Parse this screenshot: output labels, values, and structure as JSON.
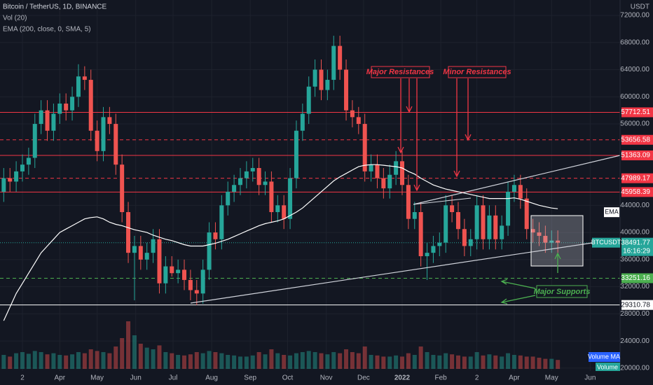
{
  "chart_data": {
    "type": "candlestick",
    "title": "Bitcoin / TetherUS, 1D, BINANCE",
    "subtitle": "Vol (20)",
    "indicator": "EMA (200, close, 0, SMA, 5)",
    "currency": "USDT",
    "x": [
      45,
      50,
      55,
      60,
      65,
      70,
      75,
      80,
      85,
      90,
      95,
      100,
      105,
      110,
      115,
      120,
      125,
      130,
      135,
      140,
      145,
      150,
      155,
      160,
      165,
      170,
      175,
      180,
      185,
      190,
      195,
      200,
      205,
      210,
      215,
      220,
      225,
      230,
      235,
      240,
      245,
      250,
      255,
      260,
      265,
      270,
      275,
      280,
      285,
      290,
      295,
      300,
      305,
      310,
      315,
      320,
      325,
      330,
      335,
      340,
      345,
      350,
      355,
      360,
      365,
      370,
      375,
      380,
      385,
      390,
      395,
      400,
      405,
      410,
      415,
      420,
      425,
      430,
      435,
      440,
      445,
      450,
      455,
      460,
      465,
      470,
      475,
      480,
      485,
      490
    ],
    "open": [
      46000,
      48000,
      47500,
      49000,
      50000,
      51000,
      56000,
      58000,
      55000,
      57500,
      59000,
      58000,
      60000,
      63000,
      62500,
      55000,
      52000,
      57000,
      56000,
      50000,
      43000,
      37000,
      38000,
      36000,
      37000,
      39000,
      32500,
      35000,
      34000,
      34500,
      33000,
      31500,
      31000,
      34500,
      40000,
      39000,
      44000,
      46000,
      47000,
      48000,
      49000,
      49500,
      47000,
      47500,
      43000,
      44000,
      42000,
      48000,
      55000,
      57500,
      61500,
      64000,
      61000,
      62500,
      67500,
      64000,
      58000,
      57000,
      56000,
      49000,
      50000,
      48000,
      46500,
      48500,
      50500,
      47000,
      42000,
      43000,
      36500,
      37000,
      38000,
      38500,
      44000,
      43000,
      40500,
      38000,
      39000,
      44000,
      39000,
      42500,
      39000,
      41000,
      46000,
      47000,
      45000,
      40500,
      40000,
      39500,
      38500,
      38800
    ],
    "high": [
      49500,
      49500,
      50500,
      51500,
      52500,
      57500,
      59500,
      59500,
      59000,
      60500,
      60500,
      61500,
      64800,
      64500,
      64000,
      56500,
      58500,
      58500,
      57500,
      51500,
      44500,
      39500,
      39500,
      38500,
      40500,
      40500,
      36500,
      36500,
      36000,
      36000,
      34500,
      33000,
      36000,
      41500,
      41500,
      45500,
      47500,
      48500,
      49500,
      50500,
      51000,
      51000,
      49000,
      49000,
      45500,
      45500,
      49500,
      56500,
      59000,
      63000,
      65500,
      65500,
      64000,
      69000,
      69000,
      65500,
      59500,
      58500,
      57500,
      51500,
      51500,
      49500,
      50000,
      52000,
      52000,
      48500,
      44500,
      44500,
      38500,
      39500,
      40000,
      45500,
      45500,
      44500,
      42000,
      40500,
      45500,
      45500,
      44000,
      44000,
      42500,
      47500,
      48500,
      48500,
      46500,
      42000,
      41500,
      41000,
      40300,
      40300
    ],
    "low": [
      44500,
      46000,
      46000,
      47500,
      48500,
      49500,
      54500,
      53500,
      53500,
      56000,
      56500,
      56500,
      58500,
      61000,
      53500,
      50500,
      50500,
      54500,
      48500,
      41500,
      35500,
      30000,
      34500,
      34500,
      35500,
      31000,
      31000,
      33500,
      32500,
      31500,
      30000,
      29300,
      29500,
      33000,
      37500,
      37500,
      42500,
      44500,
      45500,
      46500,
      47500,
      45500,
      45500,
      41500,
      41500,
      40500,
      40500,
      46500,
      53500,
      56000,
      60000,
      59500,
      59500,
      61000,
      62500,
      56500,
      55500,
      54500,
      47500,
      47500,
      46500,
      45000,
      45000,
      47000,
      45500,
      40500,
      40500,
      35000,
      33000,
      35500,
      36500,
      37000,
      41500,
      39000,
      36500,
      36500,
      37500,
      37500,
      37500,
      37500,
      37500,
      39500,
      44500,
      43500,
      39000,
      38500,
      38000,
      37000,
      37000,
      37000
    ],
    "close": [
      48000,
      47500,
      49000,
      50000,
      51000,
      56000,
      58000,
      55000,
      57500,
      59000,
      58000,
      60000,
      63000,
      62500,
      55000,
      52000,
      57000,
      56000,
      50000,
      43000,
      37000,
      38000,
      36000,
      37000,
      39000,
      32500,
      35000,
      34000,
      34500,
      33000,
      31500,
      31000,
      34500,
      40000,
      39000,
      44000,
      46000,
      47000,
      48000,
      49000,
      49500,
      47000,
      47500,
      43000,
      44000,
      42000,
      48000,
      55000,
      57500,
      61500,
      64000,
      61000,
      62500,
      67500,
      64000,
      58000,
      57000,
      56000,
      49000,
      50000,
      48000,
      46500,
      48500,
      50500,
      47000,
      42000,
      43000,
      36500,
      37000,
      38000,
      38500,
      44000,
      43000,
      40500,
      38000,
      39000,
      44000,
      39000,
      42500,
      39000,
      41000,
      46000,
      47000,
      45000,
      40500,
      40000,
      39500,
      38500,
      38800,
      38491.77
    ],
    "volume": [
      25,
      22,
      28,
      30,
      27,
      32,
      30,
      26,
      28,
      25,
      24,
      26,
      30,
      28,
      35,
      32,
      30,
      28,
      40,
      55,
      85,
      60,
      45,
      38,
      35,
      42,
      30,
      28,
      25,
      24,
      26,
      30,
      28,
      32,
      30,
      28,
      25,
      24,
      22,
      22,
      24,
      30,
      26,
      35,
      28,
      25,
      24,
      28,
      30,
      32,
      30,
      28,
      26,
      30,
      28,
      35,
      30,
      28,
      40,
      25,
      24,
      22,
      22,
      24,
      22,
      28,
      25,
      40,
      30,
      25,
      24,
      28,
      26,
      24,
      22,
      22,
      30,
      24,
      26,
      24,
      22,
      28,
      25,
      24,
      22,
      22,
      20,
      18,
      18,
      16
    ],
    "volume_lim": [
      0,
      100
    ],
    "ema": {
      "name": "EMA",
      "color": "#ffffff",
      "values": [
        27000,
        29000,
        31000,
        32500,
        34000,
        35500,
        37000,
        38000,
        39000,
        40000,
        40500,
        41000,
        41500,
        42000,
        42200,
        42300,
        42000,
        41500,
        41200,
        41000,
        40700,
        40400,
        40200,
        40000,
        39600,
        39300,
        39000,
        38800,
        38500,
        38200,
        38000,
        38000,
        38000,
        38200,
        38400,
        38700,
        39000,
        39400,
        39800,
        40200,
        40600,
        41000,
        41300,
        41500,
        41700,
        42000,
        42500,
        43000,
        43600,
        44400,
        45200,
        46000,
        46800,
        47600,
        48200,
        48700,
        49200,
        49700,
        49900,
        50000,
        50000,
        49900,
        49800,
        49700,
        49500,
        49000,
        48600,
        48000,
        47500,
        47000,
        46700,
        46400,
        46200,
        46000,
        45800,
        45600,
        45400,
        45200,
        45000,
        45000,
        45000,
        45000,
        45100,
        44900,
        44600,
        44300,
        44000,
        43800,
        43600,
        43500
      ]
    },
    "up_color": "#26a69a",
    "down_color": "#ef5350",
    "xlim": [
      42,
      540
    ],
    "ylim": [
      19575,
      74270
    ],
    "xticks": [
      {
        "value": 60,
        "label": "2"
      },
      {
        "value": 90,
        "label": "Apr"
      },
      {
        "value": 120,
        "label": "May"
      },
      {
        "value": 151,
        "label": "Jun"
      },
      {
        "value": 181,
        "label": "Jul"
      },
      {
        "value": 212,
        "label": "Aug"
      },
      {
        "value": 243,
        "label": "Sep"
      },
      {
        "value": 273,
        "label": "Oct"
      },
      {
        "value": 304,
        "label": "Nov"
      },
      {
        "value": 334,
        "label": "Dec"
      },
      {
        "value": 365,
        "label": "2022"
      },
      {
        "value": 396,
        "label": "Feb"
      },
      {
        "value": 425,
        "label": "2"
      },
      {
        "value": 455,
        "label": "Apr"
      },
      {
        "value": 485,
        "label": "May"
      },
      {
        "value": 516,
        "label": "Jun"
      }
    ],
    "yticks": [
      {
        "value": 72000,
        "label": "72000.00"
      },
      {
        "value": 68000,
        "label": "68000.00"
      },
      {
        "value": 64000,
        "label": "64000.00"
      },
      {
        "value": 60000,
        "label": "60000.00"
      },
      {
        "value": 56000,
        "label": "56000.00"
      },
      {
        "value": 44000,
        "label": "44000.00"
      },
      {
        "value": 40000,
        "label": "40000.00"
      },
      {
        "value": 36000,
        "label": "36000.00"
      },
      {
        "value": 32000,
        "label": "32000.00"
      },
      {
        "value": 28000,
        "label": "28000.00"
      },
      {
        "value": 24000,
        "label": "24000.00"
      },
      {
        "value": 20000,
        "label": "20000.00"
      }
    ],
    "grid": true,
    "levels": [
      {
        "value": 57712.51,
        "color": "#f23645",
        "dash": false
      },
      {
        "value": 53656.58,
        "color": "#f23645",
        "dash": true
      },
      {
        "value": 51363.09,
        "color": "#f23645",
        "dash": false
      },
      {
        "value": 47989.17,
        "color": "#f23645",
        "dash": true
      },
      {
        "value": 45958.39,
        "color": "#f23645",
        "dash": false
      },
      {
        "value": 33251.16,
        "color": "#4caf50",
        "dash": true
      },
      {
        "value": 29310.78,
        "color": "#ffffff",
        "dash": false
      }
    ],
    "symbol": "BTCUSDT",
    "last_price": 38491.77,
    "countdown": "16:16:29",
    "volume_ma_label": "Volume MA",
    "volume_label": "Volume",
    "annotations": [
      "Major Resistances",
      "Minor Resistances",
      "Major Supports"
    ]
  }
}
